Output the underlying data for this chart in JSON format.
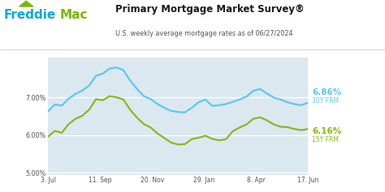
{
  "title": "Primary Mortgage Market Survey®",
  "subtitle": "U.S. weekly average mortgage rates as of 06/27/2024",
  "bg_color": "#dce8f0",
  "plot_bg_color": "#dce8f0",
  "line30_color": "#5bc8f5",
  "line15_color": "#8ab820",
  "label30_color": "#5bc8f5",
  "label15_color": "#8ab820",
  "end_label30": "6.86%",
  "end_label30_sub": "30Y FRM",
  "end_label15": "6.16%",
  "end_label15_sub": "15Y FRM",
  "freddie_blue": "#00aadd",
  "freddie_green": "#78b800",
  "x_labels": [
    "3. Jul",
    "11. Sep",
    "20. Nov",
    "29. Jan",
    "8. Apr",
    "17. Jun"
  ],
  "ylim": [
    4.95,
    8.05
  ],
  "yticks": [
    5.0,
    6.0,
    7.0
  ],
  "ytick_labels": [
    "5.00%",
    "6.00%",
    "7.00%"
  ],
  "rate30": [
    6.63,
    6.81,
    6.78,
    6.96,
    7.09,
    7.18,
    7.31,
    7.57,
    7.63,
    7.76,
    7.79,
    7.72,
    7.44,
    7.22,
    7.03,
    6.95,
    6.82,
    6.72,
    6.64,
    6.61,
    6.6,
    6.72,
    6.87,
    6.94,
    6.77,
    6.79,
    6.82,
    6.88,
    6.94,
    7.02,
    7.17,
    7.22,
    7.1,
    6.99,
    6.94,
    6.87,
    6.82,
    6.79,
    6.86
  ],
  "rate15": [
    5.96,
    6.11,
    6.06,
    6.29,
    6.43,
    6.51,
    6.67,
    6.95,
    6.92,
    7.03,
    7.0,
    6.94,
    6.67,
    6.46,
    6.29,
    6.2,
    6.04,
    5.92,
    5.8,
    5.75,
    5.76,
    5.89,
    5.93,
    5.98,
    5.9,
    5.86,
    5.89,
    6.1,
    6.2,
    6.28,
    6.43,
    6.47,
    6.39,
    6.28,
    6.22,
    6.21,
    6.16,
    6.13,
    6.16
  ]
}
